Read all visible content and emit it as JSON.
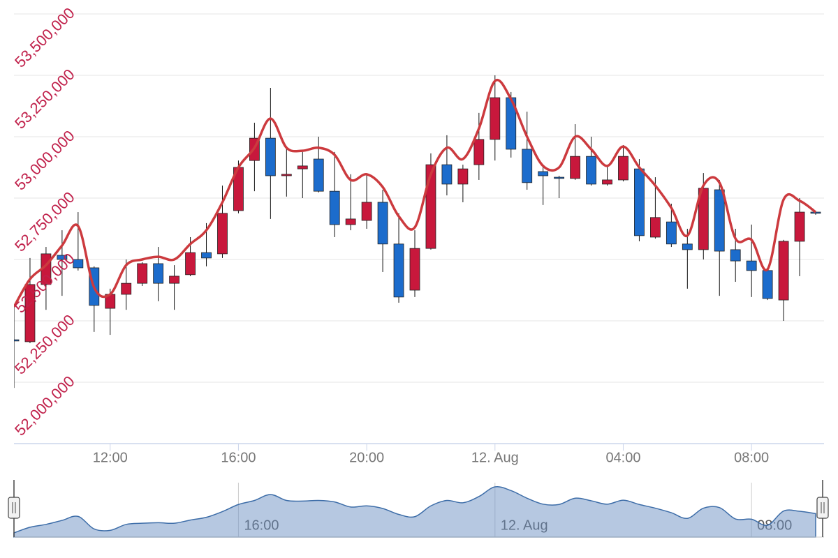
{
  "chart_data": {
    "type": "candlestick",
    "x": [
      "11. Aug 09:00",
      "11. Aug 09:30",
      "11. Aug 10:00",
      "11. Aug 10:30",
      "11. Aug 11:00",
      "11. Aug 11:30",
      "11. Aug 12:00",
      "11. Aug 12:30",
      "11. Aug 13:00",
      "11. Aug 13:30",
      "11. Aug 14:00",
      "11. Aug 14:30",
      "11. Aug 15:00",
      "11. Aug 15:30",
      "11. Aug 16:00",
      "11. Aug 16:30",
      "11. Aug 17:00",
      "11. Aug 17:30",
      "11. Aug 18:00",
      "11. Aug 18:30",
      "11. Aug 19:00",
      "11. Aug 19:30",
      "11. Aug 20:00",
      "11. Aug 20:30",
      "11. Aug 21:00",
      "11. Aug 21:30",
      "11. Aug 22:00",
      "11. Aug 22:30",
      "11. Aug 23:00",
      "11. Aug 23:30",
      "12. Aug 00:00",
      "12. Aug 00:30",
      "12. Aug 01:00",
      "12. Aug 01:30",
      "12. Aug 02:00",
      "12. Aug 02:30",
      "12. Aug 03:00",
      "12. Aug 03:30",
      "12. Aug 04:00",
      "12. Aug 04:30",
      "12. Aug 05:00",
      "12. Aug 05:30",
      "12. Aug 06:00",
      "12. Aug 06:30",
      "12. Aug 07:00",
      "12. Aug 07:30",
      "12. Aug 08:00",
      "12. Aug 08:30",
      "12. Aug 09:00",
      "12. Aug 09:30",
      "12. Aug 10:00"
    ],
    "series": [
      {
        "type": "candlestick",
        "up_color": "#c8183c",
        "down_color": "#1c6ccc",
        "open": [
          52173000,
          52165000,
          52398000,
          52517000,
          52500000,
          52466000,
          52301000,
          52358000,
          52403000,
          52483000,
          52403000,
          52438000,
          52528000,
          52523000,
          52699000,
          52903000,
          52994000,
          52841000,
          52869000,
          52909000,
          52778000,
          52642000,
          52659000,
          52733000,
          52563000,
          52375000,
          52545000,
          52886000,
          52807000,
          52886000,
          52989000,
          53159000,
          52949000,
          52858000,
          52835000,
          52830000,
          52920000,
          52807000,
          52824000,
          52869000,
          52591000,
          52653000,
          52563000,
          52540000,
          52784000,
          52540000,
          52494000,
          52455000,
          52335000,
          52574000,
          52693000
        ],
        "high": [
          52307000,
          52506000,
          52551000,
          52619000,
          52693000,
          52472000,
          52381000,
          52500000,
          52489000,
          52551000,
          52477000,
          52591000,
          52648000,
          52801000,
          52903000,
          53057000,
          53199000,
          52949000,
          52938000,
          53000000,
          52938000,
          52847000,
          52847000,
          52784000,
          52688000,
          52619000,
          52932000,
          53006000,
          52886000,
          53097000,
          53250000,
          53182000,
          53102000,
          52875000,
          52841000,
          53051000,
          53000000,
          52886000,
          52966000,
          52909000,
          52835000,
          52727000,
          52625000,
          52852000,
          52824000,
          52625000,
          52642000,
          52460000,
          52580000,
          52750000,
          52699000
        ],
        "low": [
          51977000,
          52159000,
          52295000,
          52352000,
          52455000,
          52205000,
          52193000,
          52295000,
          52392000,
          52330000,
          52295000,
          52432000,
          52472000,
          52506000,
          52688000,
          52778000,
          52665000,
          52756000,
          52750000,
          52773000,
          52591000,
          52619000,
          52625000,
          52449000,
          52324000,
          52347000,
          52540000,
          52761000,
          52733000,
          52824000,
          52903000,
          52915000,
          52784000,
          52722000,
          52750000,
          52824000,
          52801000,
          52801000,
          52818000,
          52574000,
          52585000,
          52551000,
          52381000,
          52500000,
          52352000,
          52409000,
          52347000,
          52335000,
          52250000,
          52432000,
          52682000
        ],
        "close": [
          52168000,
          52398000,
          52523000,
          52500000,
          52466000,
          52313000,
          52358000,
          52403000,
          52483000,
          52403000,
          52432000,
          52528000,
          52506000,
          52688000,
          52875000,
          52994000,
          52841000,
          52847000,
          52881000,
          52778000,
          52642000,
          52665000,
          52733000,
          52563000,
          52347000,
          52545000,
          52886000,
          52807000,
          52869000,
          52989000,
          53159000,
          52949000,
          52813000,
          52841000,
          52830000,
          52920000,
          52807000,
          52824000,
          52920000,
          52597000,
          52671000,
          52563000,
          52540000,
          52790000,
          52534000,
          52494000,
          52455000,
          52341000,
          52574000,
          52693000,
          52688000
        ]
      },
      {
        "type": "spline",
        "color": "#cc3a3e",
        "values": [
          52307000,
          52420000,
          52477000,
          52557000,
          52636000,
          52386000,
          52358000,
          52477000,
          52500000,
          52511000,
          52500000,
          52563000,
          52619000,
          52733000,
          52875000,
          52955000,
          53074000,
          52955000,
          52943000,
          52955000,
          52926000,
          52824000,
          52847000,
          52795000,
          52676000,
          52631000,
          52847000,
          52955000,
          52909000,
          53034000,
          53227000,
          53153000,
          53000000,
          52881000,
          52875000,
          53000000,
          52949000,
          52881000,
          52960000,
          52875000,
          52801000,
          52710000,
          52597000,
          52801000,
          52813000,
          52585000,
          52580000,
          52460000,
          52744000,
          52739000,
          52693000
        ]
      }
    ],
    "ylim": [
      51750000,
      53500000
    ],
    "yticks": [
      {
        "value": 52000000,
        "label": "52,000,000"
      },
      {
        "value": 52250000,
        "label": "52,250,000"
      },
      {
        "value": 52500000,
        "label": "52,500,000"
      },
      {
        "value": 52750000,
        "label": "52,750,000"
      },
      {
        "value": 53000000,
        "label": "53,000,000"
      },
      {
        "value": 53250000,
        "label": "53,250,000"
      },
      {
        "value": 53500000,
        "label": "53,500,000"
      }
    ],
    "xticks": [
      {
        "value": "11. Aug 12:00",
        "label": "12:00"
      },
      {
        "value": "11. Aug 16:00",
        "label": "16:00"
      },
      {
        "value": "11. Aug 20:00",
        "label": "20:00"
      },
      {
        "value": "12. Aug 00:00",
        "label": "12. Aug"
      },
      {
        "value": "12. Aug 04:00",
        "label": "04:00"
      },
      {
        "value": "12. Aug 08:00",
        "label": "08:00"
      }
    ],
    "grid": true,
    "navigator": true
  }
}
